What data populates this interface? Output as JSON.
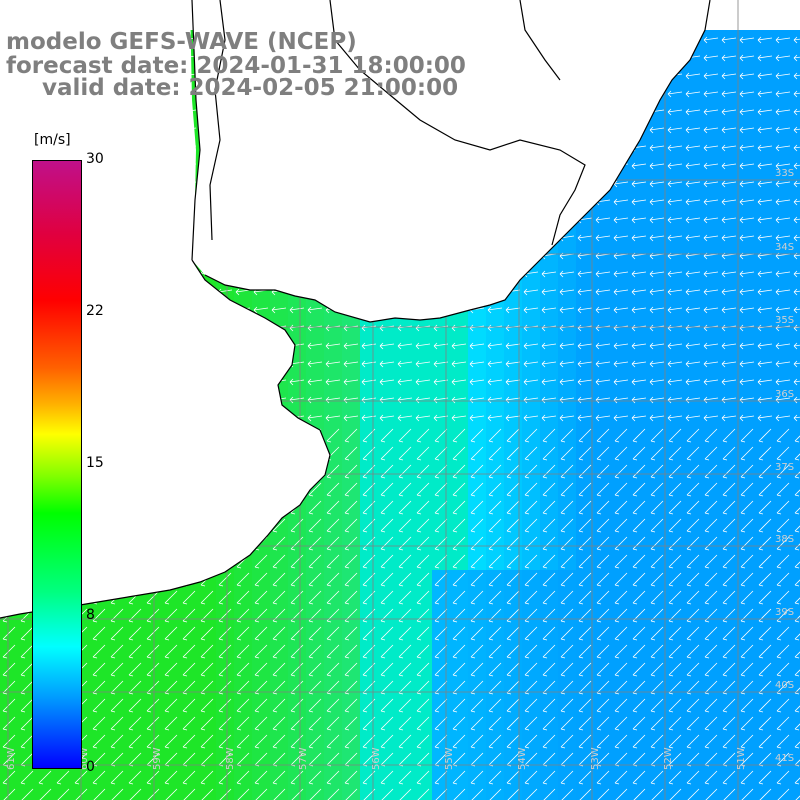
{
  "title": {
    "line1": "modelo GEFS-WAVE (NCEP)",
    "line2": "forecast date: 2024-01-31 18:00:00",
    "line3": "valid date: 2024-02-05 21:00:00"
  },
  "colorbar": {
    "unit": "[m/s]",
    "ticks": [
      "30",
      "22",
      "15",
      "8",
      "0"
    ],
    "colors": [
      "#0000ff",
      "#00a0ff",
      "#00ffff",
      "#00ff80",
      "#00ff00",
      "#ffff00",
      "#ff6000",
      "#ff0000",
      "#c0108a"
    ]
  },
  "map": {
    "variable": "wind speed with direction arrows",
    "lat_labels": [
      "33S",
      "34S",
      "35S",
      "36S",
      "37S",
      "38S",
      "39S",
      "40S",
      "41S"
    ],
    "lon_labels": [
      "61W",
      "60W",
      "59W",
      "58W",
      "57W",
      "56W",
      "55W",
      "54W",
      "53W",
      "52W",
      "51W"
    ],
    "land_color": "#ffffff",
    "coastline_color": "#000000",
    "grid_color": "#808080",
    "arrow_color": "#ffffff"
  }
}
